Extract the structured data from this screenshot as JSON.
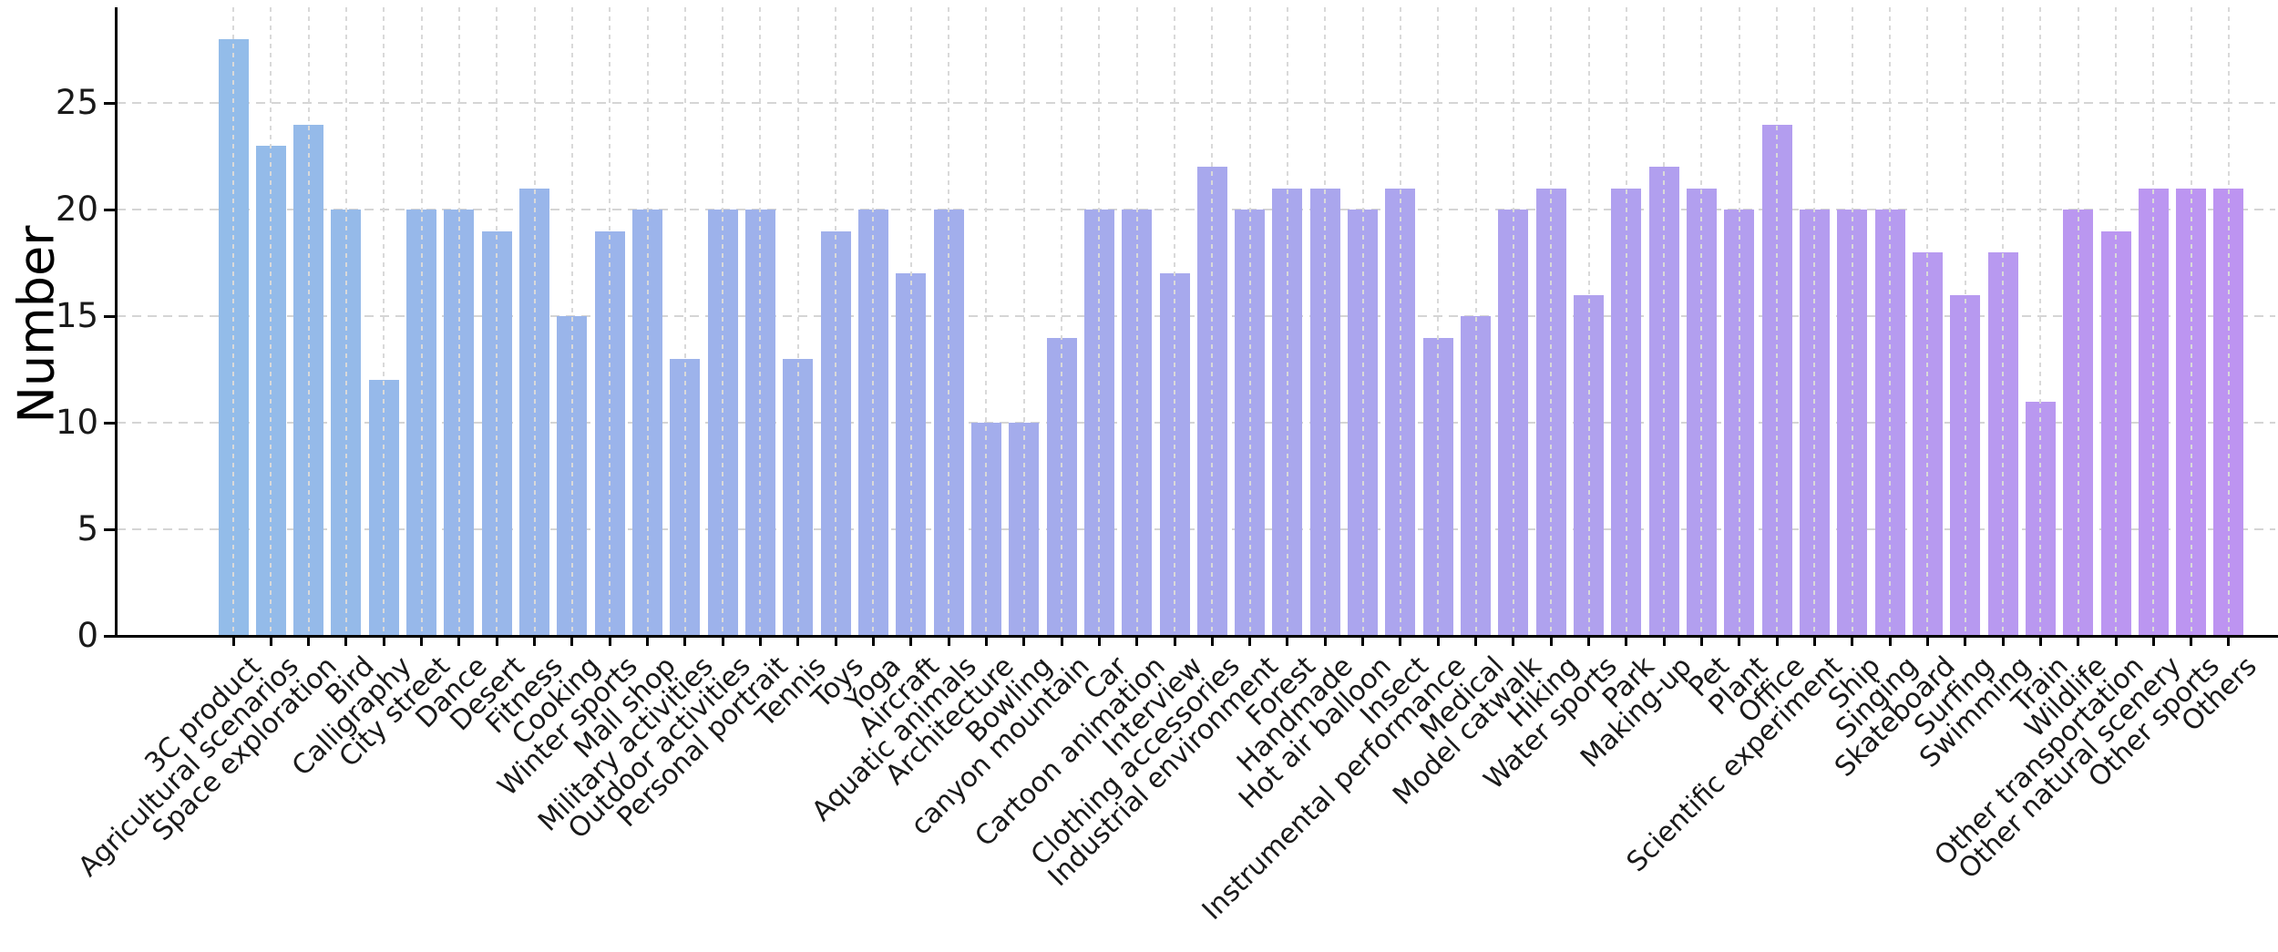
{
  "chart_data": {
    "type": "bar",
    "title": "",
    "xlabel": "",
    "ylabel": "Number",
    "categories": [
      "3C product",
      "Agricultural scenarios",
      "Space exploration",
      "Bird",
      "Calligraphy",
      "City street",
      "Dance",
      "Desert",
      "Fitness",
      "Cooking",
      "Winter sports",
      "Mall shop",
      "Military activities",
      "Outdoor activities",
      "Personal portrait",
      "Tennis",
      "Toys",
      "Yoga",
      "Aircraft",
      "Aquatic animals",
      "Architecture",
      "Bowling",
      "canyon mountain",
      "Car",
      "Cartoon animation",
      "Interview",
      "Clothing accessories",
      "Industrial environment",
      "Forest",
      "Handmade",
      "Hot air balloon",
      "Insect",
      "Instrumental performance",
      "Medical",
      "Model catwalk",
      "Hiking",
      "Water sports",
      "Park",
      "Making-up",
      "Pet",
      "Plant",
      "Office",
      "Scientific experiment",
      "Ship",
      "Singing",
      "Skateboard",
      "Surfing",
      "Swimming",
      "Train",
      "Wildlife",
      "Other transportation",
      "Other natural scenery",
      "Other sports",
      "Others"
    ],
    "values": [
      28,
      23,
      24,
      20,
      12,
      20,
      20,
      19,
      21,
      15,
      19,
      20,
      13,
      20,
      20,
      13,
      19,
      20,
      17,
      20,
      10,
      10,
      14,
      20,
      20,
      17,
      22,
      20,
      21,
      21,
      20,
      21,
      14,
      15,
      20,
      21,
      16,
      21,
      22,
      21,
      20,
      24,
      20,
      20,
      20,
      18,
      16,
      18,
      11,
      20,
      19,
      21,
      21,
      21
    ],
    "yticks": [
      0,
      5,
      10,
      15,
      20,
      25
    ],
    "ylim": [
      0,
      29.5
    ],
    "grid": "dashed, y-grid below bars, x-grid dotted above bars",
    "legend_position": "none",
    "bar_color_start": "#93BCE9",
    "bar_color_end": "#BD94F1",
    "axis_color": "#000000",
    "grid_color": "#d5d5d5",
    "tick_label_color": "#1a1a1a"
  }
}
